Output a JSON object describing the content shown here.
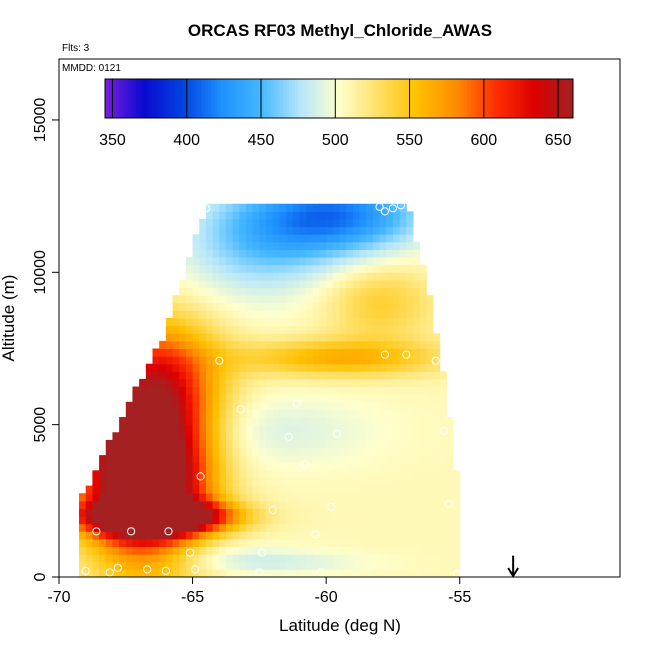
{
  "chart_data": {
    "type": "heatmap",
    "title": "ORCAS RF03 Methyl_Chloride_AWAS",
    "notes": {
      "flights": "Flts: 3",
      "date": "MMDD: 0121"
    },
    "xlabel": "Latitude (deg N)",
    "ylabel": "Altitude (m)",
    "xlim": [
      -70,
      -49
    ],
    "ylim": [
      0,
      17000
    ],
    "x_ticks": [
      -70,
      -65,
      -60,
      -55
    ],
    "x_tick_labels": [
      "-70",
      "-65",
      "-60",
      "-55"
    ],
    "y_ticks": [
      0,
      5000,
      10000,
      15000
    ],
    "y_tick_labels": [
      "0",
      "5000",
      "10000",
      "15000"
    ],
    "colorbar": {
      "min": 345,
      "max": 660,
      "ticks": [
        350,
        400,
        450,
        500,
        550,
        600,
        650
      ],
      "tick_labels": [
        "350",
        "400",
        "450",
        "500",
        "550",
        "600",
        "650"
      ],
      "colors": [
        "#7b1fe0",
        "#0a0ad0",
        "#0044e0",
        "#1e90ff",
        "#46b8ff",
        "#b4e6fb",
        "#ffffcc",
        "#ffe066",
        "#ffc000",
        "#ff8c00",
        "#ff3000",
        "#dc0000",
        "#a52020"
      ]
    },
    "domain_outline": {
      "lat": [
        -69.2,
        -68.0,
        -67.0,
        -66.0,
        -65.4,
        -64.5,
        -61.0,
        -57.5,
        -57.0,
        -56.2,
        -55.6,
        -55.0,
        -54.9,
        -62.0,
        -66.0,
        -69.2
      ],
      "alt": [
        2500,
        4600,
        6400,
        8000,
        9800,
        12200,
        12200,
        12200,
        12400,
        9600,
        6700,
        2600,
        0,
        0,
        0,
        0
      ]
    },
    "anomalies": [
      {
        "lat": -66.8,
        "alt": 3300,
        "radius_lat": 2.2,
        "radius_alt": 2600,
        "value": 240
      },
      {
        "lat": -66.3,
        "alt": 2000,
        "radius_lat": 2.6,
        "radius_alt": 500,
        "value": 180
      },
      {
        "lat": -66.2,
        "alt": 6500,
        "radius_lat": 2.2,
        "radius_alt": 2000,
        "value": 95
      },
      {
        "lat": -59.5,
        "alt": 11900,
        "radius_lat": 3.2,
        "radius_alt": 1300,
        "value": -85
      },
      {
        "lat": -62.5,
        "alt": 11000,
        "radius_lat": 3.0,
        "radius_alt": 1800,
        "value": -45
      },
      {
        "lat": -59.5,
        "alt": 7200,
        "radius_lat": 3.8,
        "radius_alt": 600,
        "value": 55
      },
      {
        "lat": -58.0,
        "alt": 9000,
        "radius_lat": 2.0,
        "radius_alt": 1300,
        "value": 35
      },
      {
        "lat": -62.0,
        "alt": 4800,
        "radius_lat": 4.0,
        "radius_alt": 1200,
        "value": -18
      },
      {
        "lat": -65.5,
        "alt": 800,
        "radius_lat": 3.0,
        "radius_alt": 500,
        "value": -16
      },
      {
        "lat": -62.0,
        "alt": 500,
        "radius_lat": 3.5,
        "radius_alt": 400,
        "value": -20
      }
    ],
    "base_value": 508,
    "samples": [
      {
        "lat": -64.5,
        "alt": 12100
      },
      {
        "lat": -58.0,
        "alt": 12150
      },
      {
        "lat": -57.8,
        "alt": 12000
      },
      {
        "lat": -57.5,
        "alt": 12100
      },
      {
        "lat": -57.2,
        "alt": 12200
      },
      {
        "lat": -64.0,
        "alt": 7100
      },
      {
        "lat": -57.8,
        "alt": 7300
      },
      {
        "lat": -57.0,
        "alt": 7300
      },
      {
        "lat": -55.9,
        "alt": 7100
      },
      {
        "lat": -63.2,
        "alt": 5500
      },
      {
        "lat": -61.1,
        "alt": 5700
      },
      {
        "lat": -61.4,
        "alt": 4600
      },
      {
        "lat": -59.6,
        "alt": 4700
      },
      {
        "lat": -55.6,
        "alt": 4800
      },
      {
        "lat": -64.7,
        "alt": 3300
      },
      {
        "lat": -60.8,
        "alt": 3700
      },
      {
        "lat": -59.8,
        "alt": 2300
      },
      {
        "lat": -62.0,
        "alt": 2200
      },
      {
        "lat": -55.4,
        "alt": 2400
      },
      {
        "lat": -68.6,
        "alt": 1500
      },
      {
        "lat": -67.3,
        "alt": 1500
      },
      {
        "lat": -65.9,
        "alt": 1500
      },
      {
        "lat": -60.4,
        "alt": 1400
      },
      {
        "lat": -65.1,
        "alt": 800
      },
      {
        "lat": -62.4,
        "alt": 800
      },
      {
        "lat": -69.0,
        "alt": 200
      },
      {
        "lat": -68.1,
        "alt": 150
      },
      {
        "lat": -67.8,
        "alt": 300
      },
      {
        "lat": -66.7,
        "alt": 250
      },
      {
        "lat": -66.0,
        "alt": 200
      },
      {
        "lat": -64.9,
        "alt": 250
      },
      {
        "lat": -62.5,
        "alt": 150
      },
      {
        "lat": -60.2,
        "alt": 150
      },
      {
        "lat": -55.1,
        "alt": 100
      },
      {
        "lat": -54.8,
        "alt": 1100
      }
    ],
    "arrow": {
      "lat": -53.0,
      "alt_top": 700,
      "alt_bottom": 0
    }
  }
}
